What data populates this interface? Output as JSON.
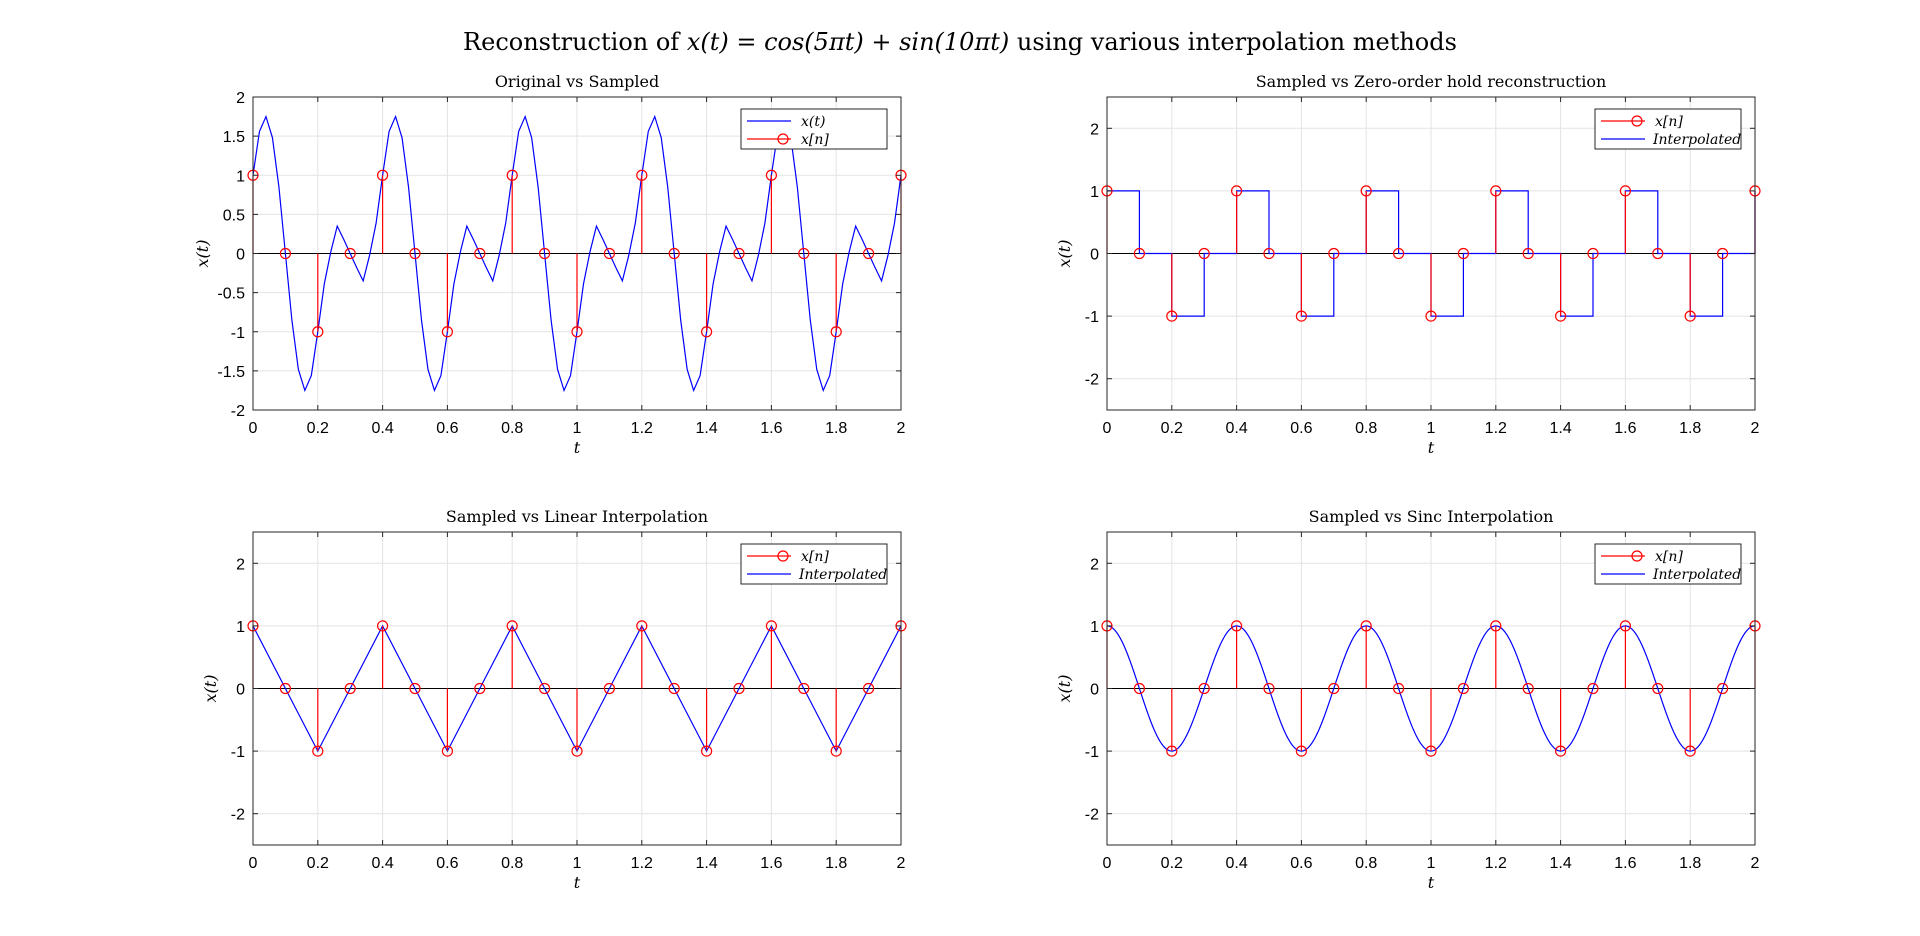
{
  "figure": {
    "title_prefix": "Reconstruction of",
    "title_formula": "x(t) = cos(5πt) + sin(10πt)",
    "title_suffix": "using various interpolation methods"
  },
  "colors": {
    "sampled": "#ff0000",
    "continuous": "#0000ff",
    "grid": "#e3e3e3",
    "axis": "#262626"
  },
  "chart_data": [
    {
      "type": "line",
      "title": "Original vs Sampled",
      "xlabel": "t",
      "ylabel": "x(t)",
      "xlim": [
        0,
        2
      ],
      "ylim": [
        -2,
        2
      ],
      "xticks": [
        0,
        0.2,
        0.4,
        0.6,
        0.8,
        1,
        1.2,
        1.4,
        1.6,
        1.8,
        2
      ],
      "xtick_labels": [
        "0",
        "0.2",
        "0.4",
        "0.6",
        "0.8",
        "1",
        "1.2",
        "1.4",
        "1.6",
        "1.8",
        "2"
      ],
      "yticks": [
        -2,
        -1.5,
        -1,
        -0.5,
        0,
        0.5,
        1,
        1.5,
        2
      ],
      "ytick_labels": [
        "-2",
        "-1.5",
        "-1",
        "-0.5",
        "0",
        "0.5",
        "1",
        "1.5",
        "2"
      ],
      "grid": true,
      "legend_position": "top-right",
      "series": [
        {
          "name": "x(t)",
          "kind": "continuous",
          "curve": "original",
          "x": [
            0,
            0.02,
            0.04,
            0.06,
            0.08,
            0.1,
            0.12,
            0.14,
            0.16,
            0.18,
            0.2,
            0.22,
            0.24,
            0.26,
            0.28,
            0.3,
            0.32,
            0.34,
            0.36,
            0.38,
            0.4
          ],
          "y": [
            1,
            1.56,
            1.75,
            1.48,
            0.85,
            0,
            -0.85,
            -1.48,
            -1.75,
            -1.56,
            -1,
            -0.39,
            0.02,
            0.35,
            0.18,
            0,
            -0.18,
            -0.35,
            -0.02,
            0.39,
            1
          ],
          "period": 0.4
        },
        {
          "name": "x[n]",
          "kind": "stem",
          "x": [
            0,
            0.1,
            0.2,
            0.3,
            0.4,
            0.5,
            0.6,
            0.7,
            0.8,
            0.9,
            1,
            1.1,
            1.2,
            1.3,
            1.4,
            1.5,
            1.6,
            1.7,
            1.8,
            1.9,
            2
          ],
          "y": [
            1,
            0,
            -1,
            0,
            1,
            0,
            -1,
            0,
            1,
            0,
            -1,
            0,
            1,
            0,
            -1,
            0,
            1,
            0,
            -1,
            0,
            1
          ]
        }
      ]
    },
    {
      "type": "line",
      "title": "Sampled vs Zero-order hold reconstruction",
      "xlabel": "t",
      "ylabel": "x(t)",
      "xlim": [
        0,
        2
      ],
      "ylim": [
        -2.5,
        2.5
      ],
      "xticks": [
        0,
        0.2,
        0.4,
        0.6,
        0.8,
        1,
        1.2,
        1.4,
        1.6,
        1.8,
        2
      ],
      "xtick_labels": [
        "0",
        "0.2",
        "0.4",
        "0.6",
        "0.8",
        "1",
        "1.2",
        "1.4",
        "1.6",
        "1.8",
        "2"
      ],
      "yticks": [
        -2,
        -1,
        0,
        1,
        2
      ],
      "ytick_labels": [
        "-2",
        "-1",
        "0",
        "1",
        "2"
      ],
      "grid": true,
      "legend_position": "top-right",
      "series": [
        {
          "name": "x[n]",
          "kind": "stem",
          "x": [
            0,
            0.1,
            0.2,
            0.3,
            0.4,
            0.5,
            0.6,
            0.7,
            0.8,
            0.9,
            1,
            1.1,
            1.2,
            1.3,
            1.4,
            1.5,
            1.6,
            1.7,
            1.8,
            1.9,
            2
          ],
          "y": [
            1,
            0,
            -1,
            0,
            1,
            0,
            -1,
            0,
            1,
            0,
            -1,
            0,
            1,
            0,
            -1,
            0,
            1,
            0,
            -1,
            0,
            1
          ]
        },
        {
          "name": "Interpolated",
          "kind": "continuous",
          "curve": "zoh"
        }
      ]
    },
    {
      "type": "line",
      "title": "Sampled vs Linear Interpolation",
      "xlabel": "t",
      "ylabel": "x(t)",
      "xlim": [
        0,
        2
      ],
      "ylim": [
        -2.5,
        2.5
      ],
      "xticks": [
        0,
        0.2,
        0.4,
        0.6,
        0.8,
        1,
        1.2,
        1.4,
        1.6,
        1.8,
        2
      ],
      "xtick_labels": [
        "0",
        "0.2",
        "0.4",
        "0.6",
        "0.8",
        "1",
        "1.2",
        "1.4",
        "1.6",
        "1.8",
        "2"
      ],
      "yticks": [
        -2,
        -1,
        0,
        1,
        2
      ],
      "ytick_labels": [
        "-2",
        "-1",
        "0",
        "1",
        "2"
      ],
      "grid": true,
      "legend_position": "top-right",
      "series": [
        {
          "name": "x[n]",
          "kind": "stem",
          "x": [
            0,
            0.1,
            0.2,
            0.3,
            0.4,
            0.5,
            0.6,
            0.7,
            0.8,
            0.9,
            1,
            1.1,
            1.2,
            1.3,
            1.4,
            1.5,
            1.6,
            1.7,
            1.8,
            1.9,
            2
          ],
          "y": [
            1,
            0,
            -1,
            0,
            1,
            0,
            -1,
            0,
            1,
            0,
            -1,
            0,
            1,
            0,
            -1,
            0,
            1,
            0,
            -1,
            0,
            1
          ]
        },
        {
          "name": "Interpolated",
          "kind": "continuous",
          "curve": "linear"
        }
      ]
    },
    {
      "type": "line",
      "title": "Sampled vs Sinc Interpolation",
      "xlabel": "t",
      "ylabel": "x(t)",
      "xlim": [
        0,
        2
      ],
      "ylim": [
        -2.5,
        2.5
      ],
      "xticks": [
        0,
        0.2,
        0.4,
        0.6,
        0.8,
        1,
        1.2,
        1.4,
        1.6,
        1.8,
        2
      ],
      "xtick_labels": [
        "0",
        "0.2",
        "0.4",
        "0.6",
        "0.8",
        "1",
        "1.2",
        "1.4",
        "1.6",
        "1.8",
        "2"
      ],
      "yticks": [
        -2,
        -1,
        0,
        1,
        2
      ],
      "ytick_labels": [
        "-2",
        "-1",
        "0",
        "1",
        "2"
      ],
      "grid": true,
      "legend_position": "top-right",
      "series": [
        {
          "name": "x[n]",
          "kind": "stem",
          "x": [
            0,
            0.1,
            0.2,
            0.3,
            0.4,
            0.5,
            0.6,
            0.7,
            0.8,
            0.9,
            1,
            1.1,
            1.2,
            1.3,
            1.4,
            1.5,
            1.6,
            1.7,
            1.8,
            1.9,
            2
          ],
          "y": [
            1,
            0,
            -1,
            0,
            1,
            0,
            -1,
            0,
            1,
            0,
            -1,
            0,
            1,
            0,
            -1,
            0,
            1,
            0,
            -1,
            0,
            1
          ]
        },
        {
          "name": "Interpolated",
          "kind": "continuous",
          "curve": "sinc"
        }
      ]
    }
  ]
}
